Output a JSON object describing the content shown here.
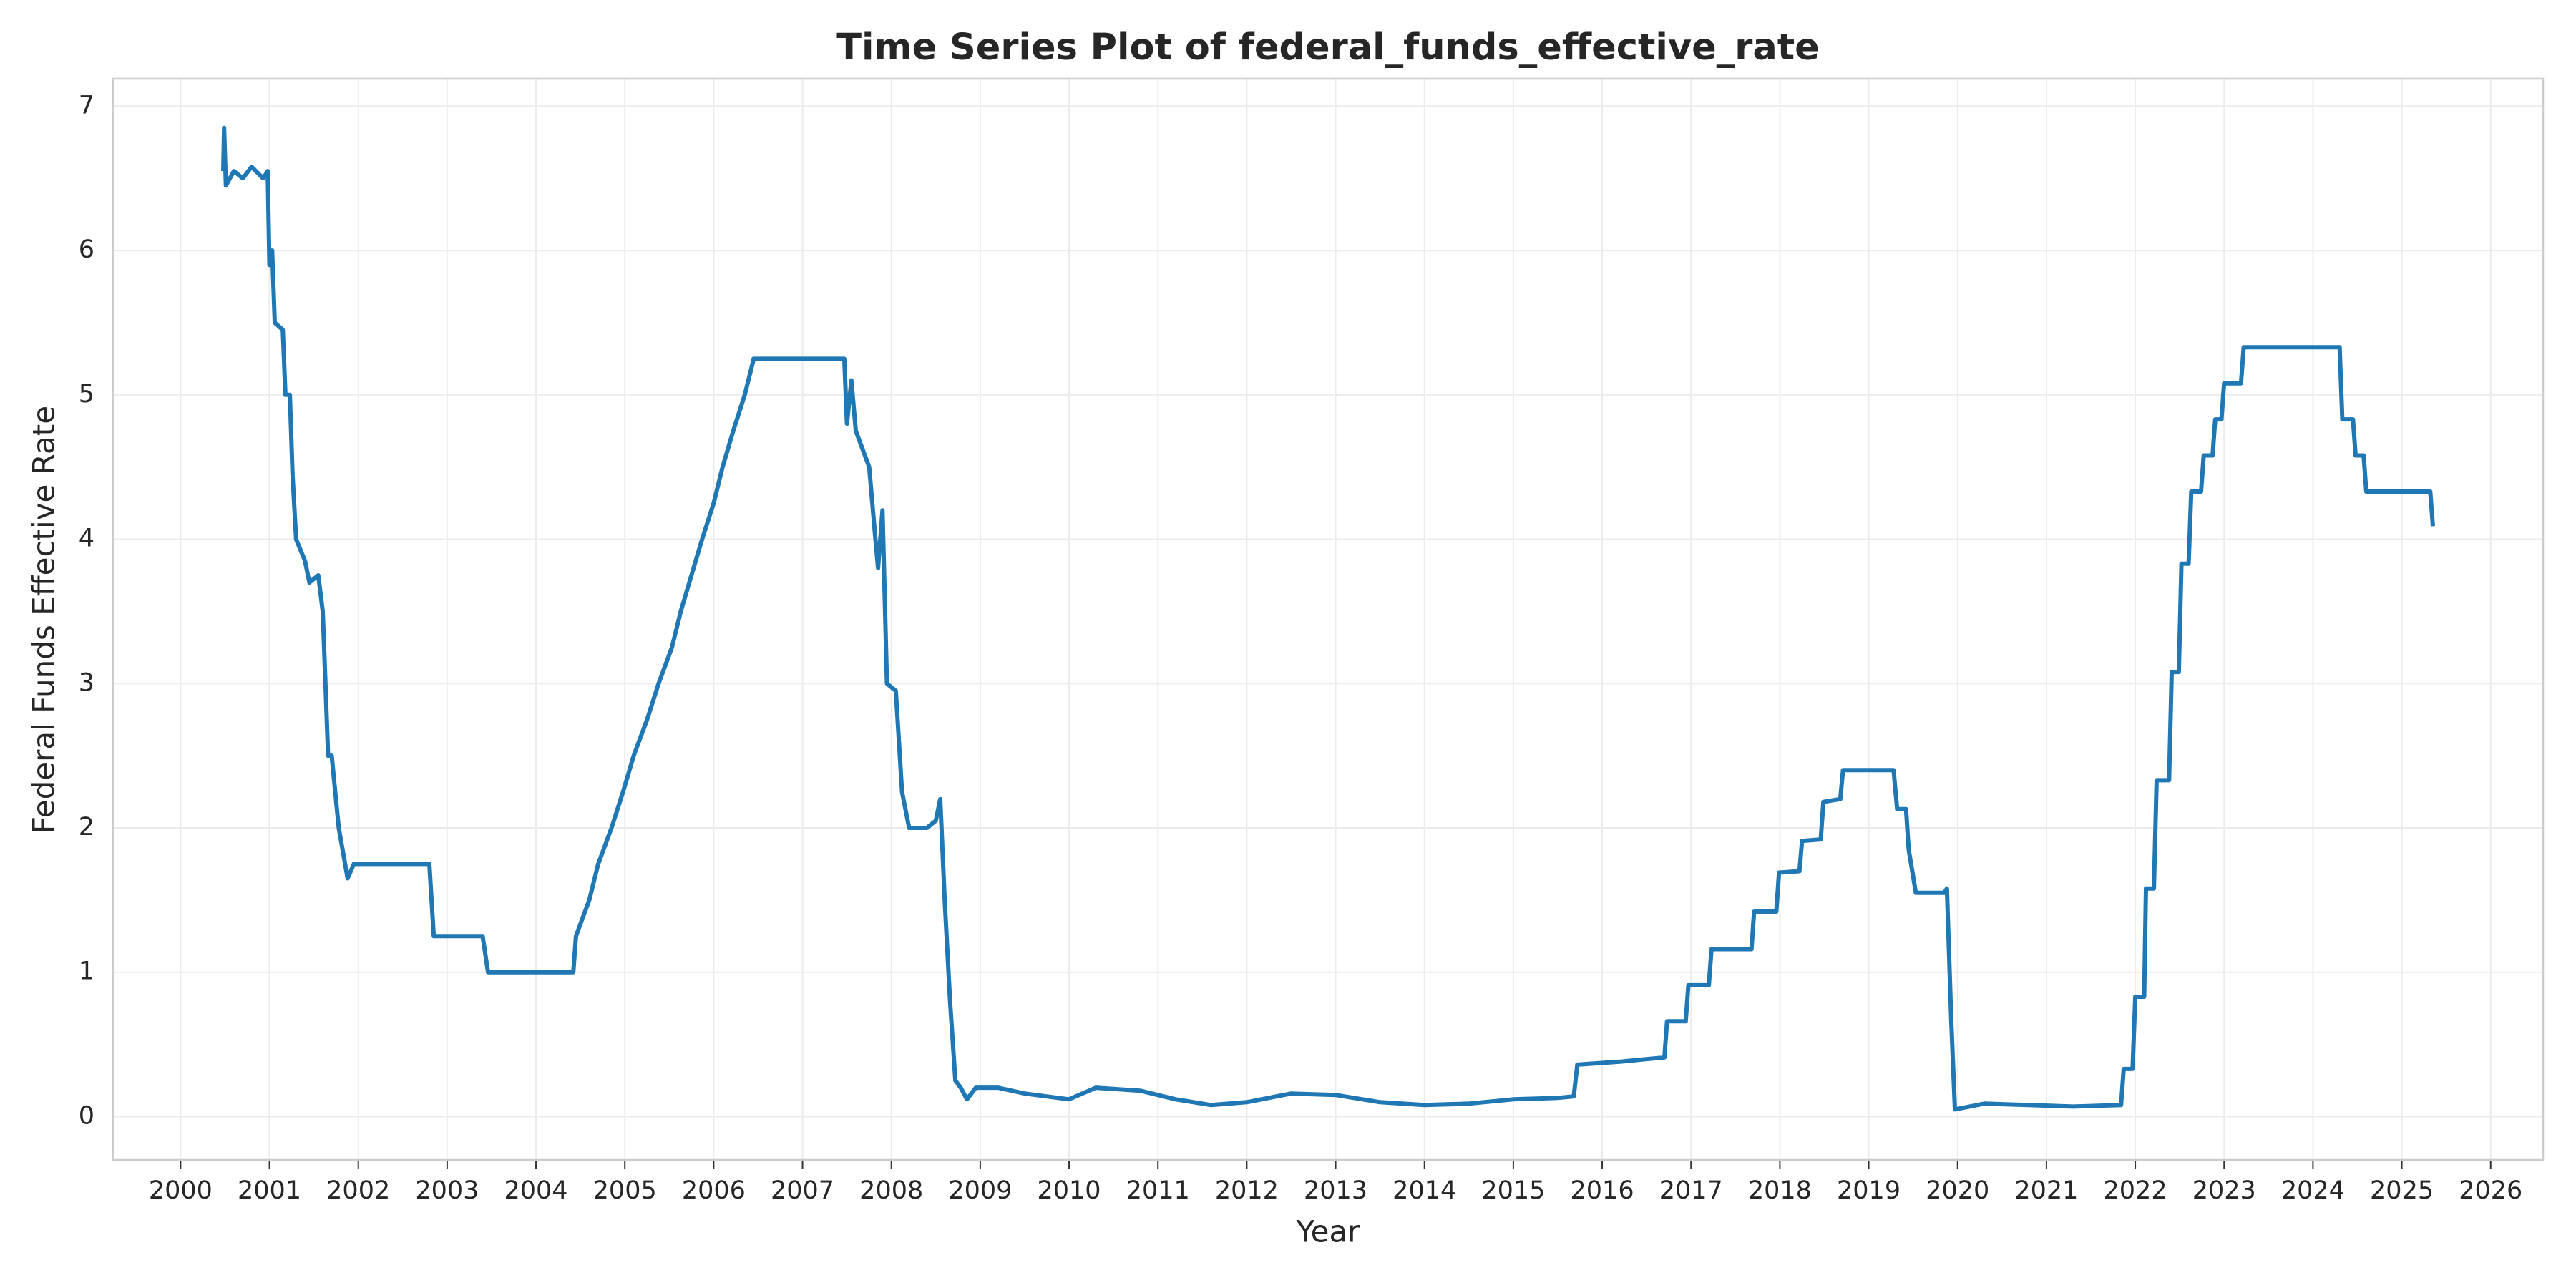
{
  "chart_data": {
    "type": "line",
    "title": "Time Series Plot of federal_funds_effective_rate",
    "xlabel": "Year",
    "ylabel": "Federal Funds Effective Rate",
    "color": "#1f77b4",
    "grid": true,
    "xlim": [
      1999.24,
      2026.59
    ],
    "ylim": [
      -0.3,
      7.19
    ],
    "xticks": [
      2000,
      2001,
      2002,
      2003,
      2004,
      2005,
      2006,
      2007,
      2008,
      2009,
      2010,
      2011,
      2012,
      2013,
      2014,
      2015,
      2016,
      2017,
      2018,
      2019,
      2020,
      2021,
      2022,
      2023,
      2024,
      2025,
      2026
    ],
    "yticks": [
      0,
      1,
      2,
      3,
      4,
      5,
      6,
      7
    ],
    "x": [
      2000.48,
      2000.49,
      2000.51,
      2000.6,
      2000.7,
      2000.8,
      2000.93,
      2000.98,
      2001.0,
      2001.03,
      2001.06,
      2001.15,
      2001.18,
      2001.23,
      2001.26,
      2001.3,
      2001.4,
      2001.45,
      2001.55,
      2001.6,
      2001.63,
      2001.66,
      2001.7,
      2001.78,
      2001.88,
      2001.95,
      2002.3,
      2002.6,
      2002.8,
      2002.85,
      2003.2,
      2003.4,
      2003.46,
      2003.7,
      2004.0,
      2004.42,
      2004.45,
      2004.6,
      2004.7,
      2004.85,
      2004.98,
      2005.1,
      2005.25,
      2005.38,
      2005.53,
      2005.63,
      2005.75,
      2005.87,
      2006.0,
      2006.1,
      2006.22,
      2006.35,
      2006.45,
      2006.8,
      2007.1,
      2007.47,
      2007.5,
      2007.55,
      2007.6,
      2007.75,
      2007.82,
      2007.85,
      2007.9,
      2007.95,
      2008.05,
      2008.12,
      2008.2,
      2008.4,
      2008.5,
      2008.55,
      2008.6,
      2008.66,
      2008.72,
      2008.78,
      2008.85,
      2008.95,
      2009.2,
      2009.5,
      2010.0,
      2010.3,
      2010.8,
      2011.2,
      2011.6,
      2012.0,
      2012.5,
      2013.0,
      2013.5,
      2014.0,
      2014.5,
      2015.0,
      2015.5,
      2015.68,
      2015.72,
      2016.2,
      2016.7,
      2016.73,
      2016.94,
      2016.97,
      2017.2,
      2017.23,
      2017.68,
      2017.71,
      2017.96,
      2017.99,
      2018.22,
      2018.25,
      2018.46,
      2018.49,
      2018.68,
      2018.71,
      2019.28,
      2019.32,
      2019.42,
      2019.45,
      2019.53,
      2019.85,
      2019.88,
      2019.93,
      2019.97,
      2020.3,
      2020.8,
      2021.3,
      2021.84,
      2021.87,
      2021.97,
      2022.0,
      2022.1,
      2022.12,
      2022.21,
      2022.24,
      2022.38,
      2022.41,
      2022.49,
      2022.52,
      2022.6,
      2022.63,
      2022.74,
      2022.77,
      2022.87,
      2022.9,
      2022.97,
      2023.0,
      2023.19,
      2023.22,
      2024.3,
      2024.33,
      2024.45,
      2024.48,
      2024.57,
      2024.6,
      2025.32,
      2025.35
    ],
    "values": [
      6.55,
      6.85,
      6.45,
      6.55,
      6.5,
      6.58,
      6.5,
      6.55,
      5.9,
      6.0,
      5.5,
      5.45,
      5.0,
      5.0,
      4.45,
      4.0,
      3.85,
      3.7,
      3.75,
      3.5,
      3.0,
      2.5,
      2.5,
      2.0,
      1.65,
      1.75,
      1.75,
      1.75,
      1.75,
      1.25,
      1.25,
      1.25,
      1.0,
      1.0,
      1.0,
      1.0,
      1.25,
      1.5,
      1.75,
      2.0,
      2.25,
      2.5,
      2.75,
      3.0,
      3.25,
      3.5,
      3.75,
      4.0,
      4.25,
      4.5,
      4.75,
      5.0,
      5.25,
      5.25,
      5.25,
      5.25,
      4.8,
      5.1,
      4.75,
      4.5,
      4.0,
      3.8,
      4.2,
      3.0,
      2.95,
      2.25,
      2.0,
      2.0,
      2.05,
      2.2,
      1.5,
      0.8,
      0.25,
      0.2,
      0.12,
      0.2,
      0.2,
      0.16,
      0.12,
      0.2,
      0.18,
      0.12,
      0.08,
      0.1,
      0.16,
      0.15,
      0.1,
      0.08,
      0.09,
      0.12,
      0.13,
      0.14,
      0.36,
      0.38,
      0.41,
      0.66,
      0.66,
      0.91,
      0.91,
      1.16,
      1.16,
      1.42,
      1.42,
      1.69,
      1.7,
      1.91,
      1.92,
      2.18,
      2.2,
      2.4,
      2.4,
      2.13,
      2.13,
      1.85,
      1.55,
      1.55,
      1.58,
      0.65,
      0.05,
      0.09,
      0.08,
      0.07,
      0.08,
      0.33,
      0.33,
      0.83,
      0.83,
      1.58,
      1.58,
      2.33,
      2.33,
      3.08,
      3.08,
      3.83,
      3.83,
      4.33,
      4.33,
      4.58,
      4.58,
      4.83,
      4.83,
      5.08,
      5.08,
      5.33,
      5.33,
      4.83,
      4.83,
      4.58,
      4.58,
      4.33,
      4.33,
      4.09
    ]
  }
}
